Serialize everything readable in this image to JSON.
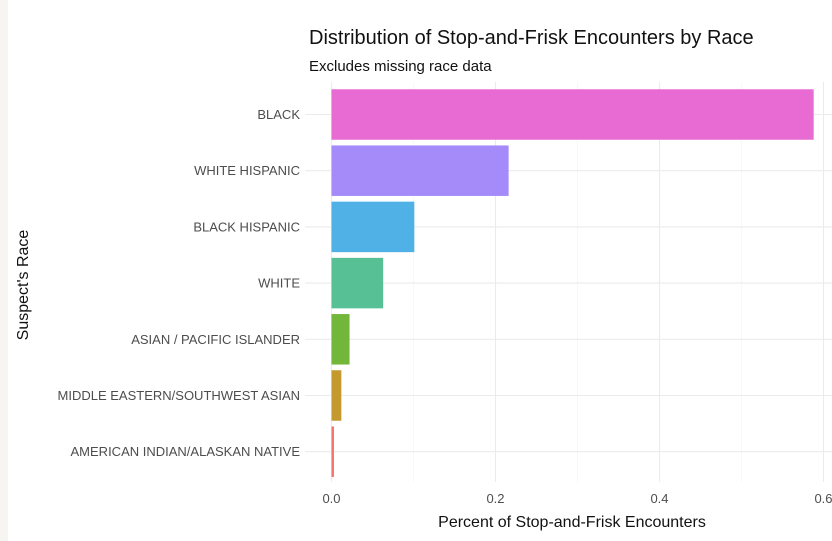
{
  "chart_data": {
    "type": "bar",
    "orientation": "horizontal",
    "title": "Distribution of Stop-and-Frisk Encounters by Race",
    "subtitle": "Excludes missing race data",
    "xlabel": "Percent of Stop-and-Frisk Encounters",
    "ylabel": "Suspect's Race",
    "xlim": [
      0,
      0.6
    ],
    "x_ticks": [
      0.0,
      0.2,
      0.4,
      0.6
    ],
    "x_tick_labels": [
      "0.0",
      "0.2",
      "0.4",
      "0.6"
    ],
    "grid": true,
    "legend": "none",
    "categories": [
      "BLACK",
      "WHITE HISPANIC",
      "BLACK HISPANIC",
      "WHITE",
      "ASIAN / PACIFIC ISLANDER",
      "MIDDLE EASTERN/SOUTHWEST ASIAN",
      "AMERICAN INDIAN/ALASKAN NATIVE"
    ],
    "values": [
      0.588,
      0.216,
      0.101,
      0.063,
      0.022,
      0.012,
      0.003
    ],
    "colors": [
      "#e76bd3",
      "#a58afa",
      "#4fb1e6",
      "#57c195",
      "#72b63a",
      "#c49a2f",
      "#f2766e"
    ]
  }
}
